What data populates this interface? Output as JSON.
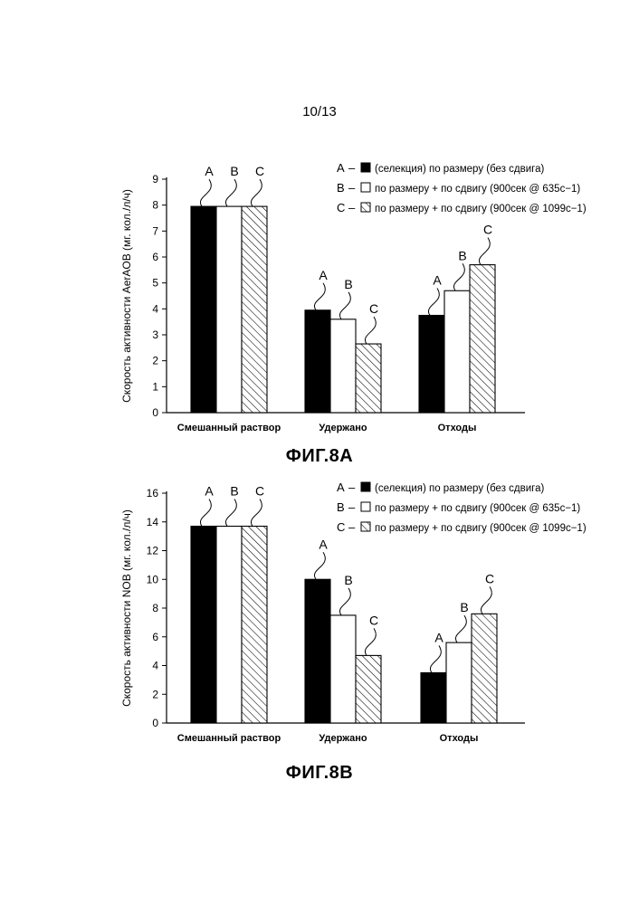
{
  "page_number": "10/13",
  "chart_data": [
    {
      "type": "bar",
      "title": "ФИГ.8А",
      "ylabel": "Скорость активности AerAOB (мг. кол./л/ч)",
      "xlabel": "",
      "ylim": [
        0,
        9
      ],
      "yticks": [
        "0",
        "1",
        "2",
        "3",
        "4",
        "5",
        "6",
        "7",
        "8",
        "9"
      ],
      "categories": [
        "Смешанный раствор",
        "Удержано",
        "Отходы"
      ],
      "series": [
        {
          "name": "A",
          "values": [
            7.95,
            3.95,
            3.75
          ]
        },
        {
          "name": "B",
          "values": [
            7.95,
            3.6,
            4.7
          ]
        },
        {
          "name": "C",
          "values": [
            7.95,
            2.65,
            5.7
          ]
        }
      ],
      "bar_labels": [
        [
          "A",
          "B",
          "C"
        ],
        [
          "A",
          "B",
          "C"
        ],
        [
          "A",
          "B",
          "C"
        ]
      ],
      "legend": {
        "placement": "top-right",
        "items": [
          {
            "key": "A",
            "dash": "–",
            "text": "(селекция) по размеру (без сдвига)"
          },
          {
            "key": "B",
            "dash": "–",
            "text": "по размеру + по сдвигу (900сек @ 635с−1)"
          },
          {
            "key": "C",
            "dash": "–",
            "text": "по размеру + по сдвигу (900сек @ 1099с−1)"
          }
        ]
      },
      "colors": {
        "A": "#000000",
        "B": "#ffffff",
        "C": "hatched"
      }
    },
    {
      "type": "bar",
      "title": "ФИГ.8В",
      "ylabel": "Скорость активности NOB (мг. кол./л/ч)",
      "xlabel": "",
      "ylim": [
        0,
        16
      ],
      "yticks": [
        "0",
        "2",
        "4",
        "6",
        "8",
        "10",
        "12",
        "14",
        "16"
      ],
      "categories": [
        "Смешанный раствор",
        "Удержано",
        "Отходы"
      ],
      "series": [
        {
          "name": "A",
          "values": [
            13.7,
            10.0,
            3.5
          ]
        },
        {
          "name": "B",
          "values": [
            13.7,
            7.5,
            5.6
          ]
        },
        {
          "name": "C",
          "values": [
            13.7,
            4.7,
            7.6
          ]
        }
      ],
      "bar_labels": [
        [
          "A",
          "B",
          "C"
        ],
        [
          "A",
          "B",
          "C"
        ],
        [
          "A",
          "B",
          "C"
        ]
      ],
      "legend": {
        "placement": "top-right",
        "items": [
          {
            "key": "A",
            "dash": "–",
            "text": "(селекция) по размеру (без сдвига)"
          },
          {
            "key": "B",
            "dash": "–",
            "text": "по размеру + по сдвигу (900сек @ 635с−1)"
          },
          {
            "key": "C",
            "dash": "–",
            "text": "по размеру + по сдвигу (900сек @ 1099с−1)"
          }
        ]
      },
      "colors": {
        "A": "#000000",
        "B": "#ffffff",
        "C": "hatched"
      }
    }
  ]
}
